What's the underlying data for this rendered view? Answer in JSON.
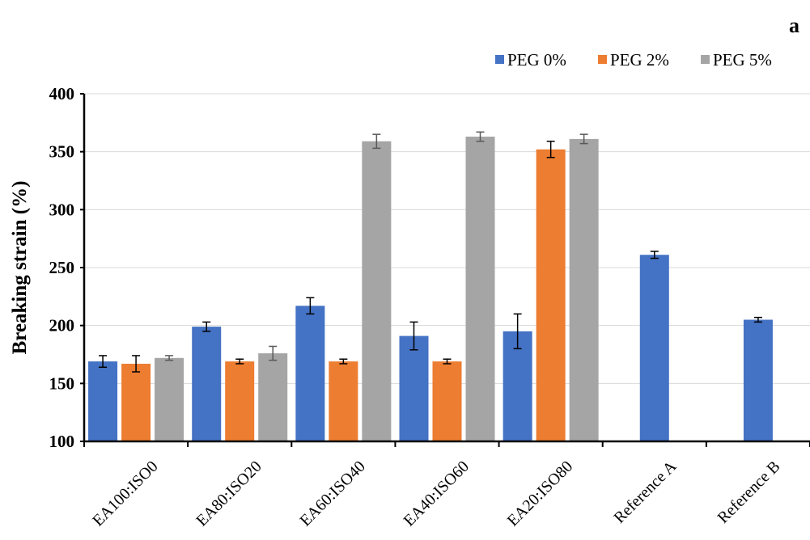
{
  "panel_label": "a",
  "colors": {
    "axis": "#000000",
    "grid": "#d9d9d9",
    "errorbar": "#000000"
  },
  "chart_data": {
    "type": "bar",
    "title": "",
    "xlabel": "",
    "ylabel": "Breaking strain (%)",
    "ylim": [
      100,
      400
    ],
    "yticks": [
      100,
      150,
      200,
      250,
      300,
      350,
      400
    ],
    "grid": true,
    "legend_position": "top-right",
    "categories": [
      "EA100:ISO0",
      "EA80:ISO20",
      "EA60:ISO40",
      "EA40:ISO60",
      "EA20:ISO80",
      "Reference A",
      "Reference B"
    ],
    "series": [
      {
        "name": "PEG 0%",
        "color": "#4472c4",
        "values": [
          169,
          199,
          217,
          191,
          195,
          261,
          205
        ],
        "errors": [
          5,
          4,
          7,
          12,
          15,
          3,
          2
        ]
      },
      {
        "name": "PEG 2%",
        "color": "#ed7d31",
        "values": [
          167,
          169,
          169,
          169,
          352,
          null,
          null
        ],
        "errors": [
          7,
          2,
          2,
          2,
          7,
          null,
          null
        ]
      },
      {
        "name": "PEG 5%",
        "color": "#a5a5a5",
        "values": [
          172,
          176,
          359,
          363,
          361,
          null,
          null
        ],
        "errors": [
          2,
          6,
          6,
          4,
          4,
          null,
          null
        ]
      }
    ]
  }
}
